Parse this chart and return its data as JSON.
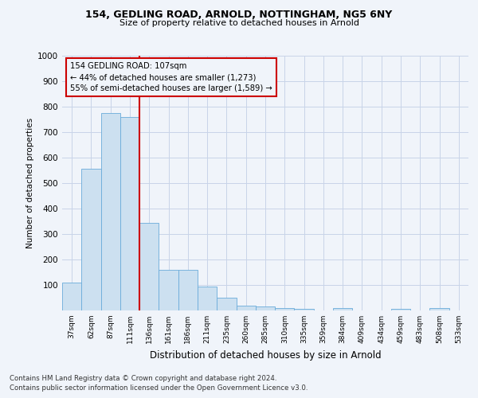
{
  "title1": "154, GEDLING ROAD, ARNOLD, NOTTINGHAM, NG5 6NY",
  "title2": "Size of property relative to detached houses in Arnold",
  "xlabel": "Distribution of detached houses by size in Arnold",
  "ylabel": "Number of detached properties",
  "bar_labels": [
    "37sqm",
    "62sqm",
    "87sqm",
    "111sqm",
    "136sqm",
    "161sqm",
    "186sqm",
    "211sqm",
    "235sqm",
    "260sqm",
    "285sqm",
    "310sqm",
    "335sqm",
    "359sqm",
    "384sqm",
    "409sqm",
    "434sqm",
    "459sqm",
    "483sqm",
    "508sqm",
    "533sqm"
  ],
  "bar_values": [
    110,
    555,
    775,
    760,
    345,
    160,
    160,
    95,
    50,
    20,
    15,
    10,
    5,
    0,
    10,
    0,
    0,
    5,
    0,
    10,
    0
  ],
  "bar_color_fill": "#cce0f0",
  "bar_color_edge": "#6aacda",
  "vline_x": 3.5,
  "vline_color": "#cc0000",
  "annotation_line1": "154 GEDLING ROAD: 107sqm",
  "annotation_line2": "← 44% of detached houses are smaller (1,273)",
  "annotation_line3": "55% of semi-detached houses are larger (1,589) →",
  "annotation_box_color": "#cc0000",
  "ylim": [
    0,
    1000
  ],
  "yticks": [
    0,
    100,
    200,
    300,
    400,
    500,
    600,
    700,
    800,
    900,
    1000
  ],
  "footer1": "Contains HM Land Registry data © Crown copyright and database right 2024.",
  "footer2": "Contains public sector information licensed under the Open Government Licence v3.0.",
  "bg_color": "#f0f4fa",
  "grid_color": "#c8d4e8"
}
